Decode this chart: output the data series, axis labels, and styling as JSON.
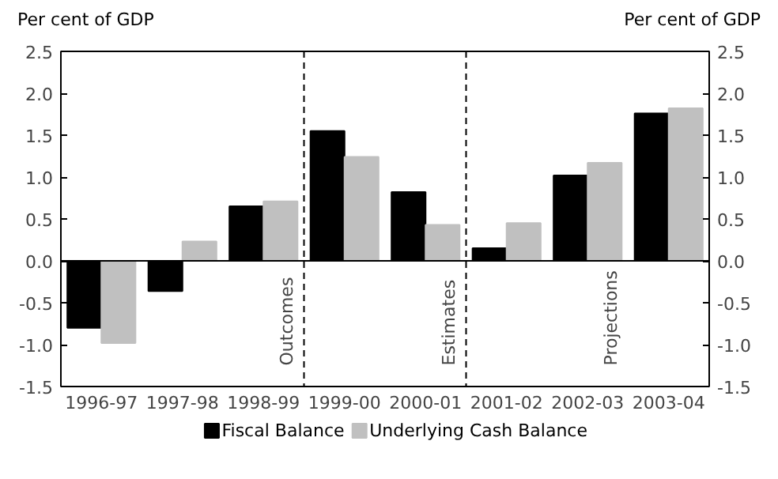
{
  "chart_data": {
    "type": "bar",
    "ylabel": "Per cent of GDP",
    "y2label": "Per cent of GDP",
    "categories": [
      "1996-97",
      "1997-98",
      "1998-99",
      "1999-00",
      "2000-01",
      "2001-02",
      "2002-03",
      "2003-04"
    ],
    "series": [
      {
        "name": "Fiscal Balance",
        "color": "#000000",
        "values": [
          -0.8,
          -0.36,
          0.65,
          1.55,
          0.82,
          0.15,
          1.02,
          1.76
        ]
      },
      {
        "name": "Underlying Cash Balance",
        "color": "#c0c0c0",
        "values": [
          -0.98,
          0.23,
          0.71,
          1.24,
          0.43,
          0.45,
          1.17,
          1.82
        ]
      }
    ],
    "ylim": [
      -1.5,
      2.5
    ],
    "yticks": [
      {
        "value": -1.5,
        "label": "-1.5"
      },
      {
        "value": -1.0,
        "label": "-1.0"
      },
      {
        "value": -0.5,
        "label": "-0.5"
      },
      {
        "value": 0,
        "label": "0.0"
      },
      {
        "value": 0.5,
        "label": "0.5"
      },
      {
        "value": 1.0,
        "label": "1.0"
      },
      {
        "value": 1.5,
        "label": "1.5"
      },
      {
        "value": 2.0,
        "label": "2.0"
      },
      {
        "value": 2.5,
        "label": "2.5"
      }
    ],
    "y2lim": [
      -1.5,
      2.5
    ],
    "y2ticks": [
      {
        "value": -1.5,
        "label": "-1.5"
      },
      {
        "value": -1.0,
        "label": "-1.0"
      },
      {
        "value": -0.5,
        "label": "-0.5"
      },
      {
        "value": 0,
        "label": "0.0"
      },
      {
        "value": 0.5,
        "label": "0.5"
      },
      {
        "value": 1.0,
        "label": "1.0"
      },
      {
        "value": 1.5,
        "label": "1.5"
      },
      {
        "value": 2.0,
        "label": "2.0"
      },
      {
        "value": 2.5,
        "label": "2.5"
      }
    ],
    "annotations": [
      "Outcomes",
      "Estimates",
      "Projections"
    ],
    "legend": "bottom"
  }
}
